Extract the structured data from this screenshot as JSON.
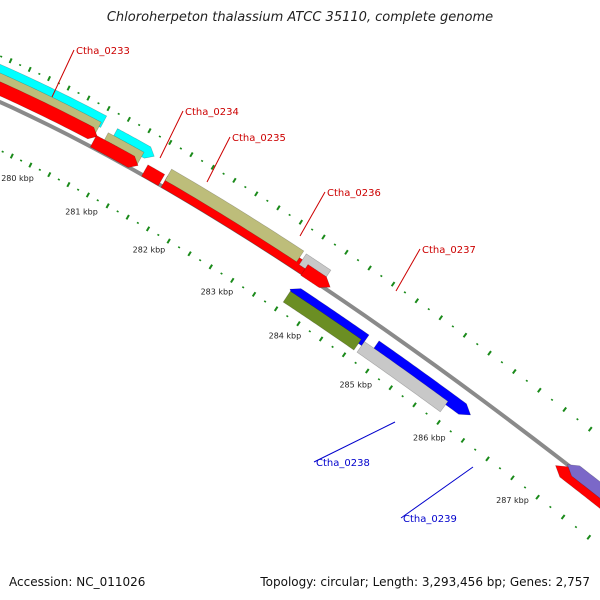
{
  "title": "Chloroherpeton thalassium ATCC 35110, complete genome",
  "footer": {
    "accession": "Accession: NC_011026",
    "summary": "Topology: circular; Length: 3,293,456 bp; Genes: 2,757"
  },
  "colors": {
    "backbone": "#8a8a8a",
    "tick": "#1a8a1a",
    "red": "#ff0000",
    "khaki": "#bdbd7a",
    "cyan": "#00ffff",
    "gray_feature": "#c8c8c8",
    "blue": "#0000ff",
    "olive": "#6b8e23",
    "purple": "#7b68c8",
    "label_red": "#cc0000",
    "label_blue": "#0000cc"
  },
  "scale_labels": [
    {
      "text": "280 kbp",
      "kbp": 280
    },
    {
      "text": "281 kbp",
      "kbp": 281
    },
    {
      "text": "282 kbp",
      "kbp": 282
    },
    {
      "text": "283 kbp",
      "kbp": 283
    },
    {
      "text": "284 kbp",
      "kbp": 284
    },
    {
      "text": "285 kbp",
      "kbp": 285
    },
    {
      "text": "286 kbp",
      "kbp": 286
    },
    {
      "text": "287 kbp",
      "kbp": 287
    }
  ],
  "gene_labels": [
    {
      "text": "Ctha_0233",
      "color": "label_red"
    },
    {
      "text": "Ctha_0234",
      "color": "label_red"
    },
    {
      "text": "Ctha_0235",
      "color": "label_red"
    },
    {
      "text": "Ctha_0236",
      "color": "label_red"
    },
    {
      "text": "Ctha_0237",
      "color": "label_red"
    },
    {
      "text": "Ctha_0238",
      "color": "label_blue"
    },
    {
      "text": "Ctha_0239",
      "color": "label_blue"
    }
  ]
}
